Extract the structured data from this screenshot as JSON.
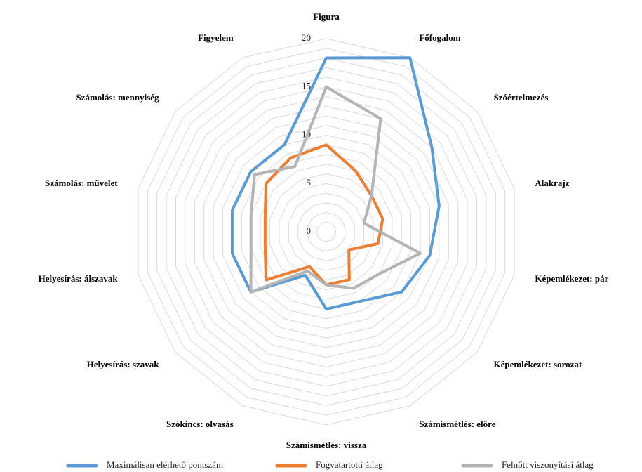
{
  "chart_data": {
    "type": "radar",
    "categories": [
      "Figura",
      "Főfogalom",
      "Szóértelmezés",
      "Alakrajz",
      "Képemlékezet: pár",
      "Képemlékezet: sorozat",
      "Számismétlés: előre",
      "Számismétlés: vissza",
      "Szókincs: olvasás",
      "Helyesírás: szavak",
      "Helyesírás: álszavak",
      "Számolás: művelet",
      "Számolás: mennyiség",
      "Figyelem"
    ],
    "series": [
      {
        "name": "Maximálisan elérhető pontszám",
        "color": "#5b9bd5",
        "values": [
          18,
          20,
          14,
          12,
          11,
          10,
          8,
          8,
          5,
          10,
          10,
          10,
          10,
          10
        ]
      },
      {
        "name": "Fogvatartotti átlag",
        "color": "#ed7d31",
        "values": [
          9,
          7,
          6,
          6,
          5.5,
          3,
          5.5,
          5.5,
          4,
          8,
          6.5,
          6.5,
          8,
          8.5
        ]
      },
      {
        "name": "Felnőtt viszonyítási átlag",
        "color": "#b4b4b4",
        "values": [
          15,
          13,
          6,
          4,
          10,
          7,
          6.5,
          5.5,
          4.5,
          10,
          8,
          8,
          9.5,
          7.5
        ]
      }
    ],
    "rlim": [
      0,
      20
    ],
    "rticks": [
      0,
      5,
      10,
      15,
      20
    ],
    "grid_step": 1,
    "legend": "bottom"
  }
}
